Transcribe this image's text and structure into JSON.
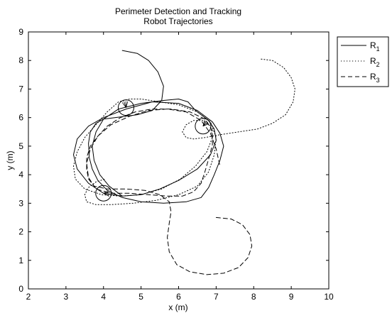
{
  "chart_data": {
    "type": "line",
    "title": "Perimeter Detection and Tracking",
    "subtitle": "Robot Trajectories",
    "xlabel": "x (m)",
    "ylabel": "y (m)",
    "xlim": [
      2,
      10
    ],
    "ylim": [
      0,
      9
    ],
    "xticks": [
      "2",
      "3",
      "4",
      "5",
      "6",
      "7",
      "8",
      "9",
      "10"
    ],
    "yticks": [
      "0",
      "1",
      "2",
      "3",
      "4",
      "5",
      "6",
      "7",
      "8",
      "9"
    ],
    "grid": false,
    "legend_position": "outside-top-right",
    "legend": [
      {
        "base": "R",
        "sub": "1"
      },
      {
        "base": "R",
        "sub": "2"
      },
      {
        "base": "R",
        "sub": "3"
      }
    ],
    "markers": [
      {
        "x": 4.6,
        "y": 6.35
      },
      {
        "x": 6.65,
        "y": 5.7
      },
      {
        "x": 4.0,
        "y": 3.35
      }
    ],
    "series": [
      {
        "style": "solid",
        "x": [
          4.5,
          4.9,
          5.2,
          5.45,
          5.6,
          5.55,
          5.3,
          4.9,
          4.6,
          4.3,
          4.0,
          3.8,
          3.65,
          3.6,
          3.62,
          3.7,
          3.85,
          4.1,
          4.5,
          5.0,
          5.6,
          6.2,
          6.6,
          6.8,
          6.95,
          7.1,
          7.2,
          7.1,
          6.9,
          6.5,
          6.0,
          5.3,
          4.6,
          4.0,
          3.6,
          3.3,
          3.2,
          3.3,
          3.6,
          4.0,
          4.5,
          5.0,
          5.5,
          6.0,
          6.5,
          6.85,
          7.0,
          6.95,
          6.8,
          6.6,
          6.45,
          6.35,
          6.25,
          6.0,
          5.6,
          5.0,
          4.4,
          4.0,
          3.8,
          3.7,
          3.75,
          3.9,
          4.15,
          4.5
        ],
        "y": [
          8.35,
          8.25,
          8.0,
          7.6,
          7.1,
          6.6,
          6.25,
          6.1,
          6.05,
          6.0,
          5.95,
          5.8,
          5.5,
          5.1,
          4.6,
          4.2,
          3.8,
          3.45,
          3.2,
          3.05,
          3.0,
          3.05,
          3.2,
          3.55,
          4.0,
          4.5,
          5.0,
          5.45,
          5.85,
          6.25,
          6.5,
          6.55,
          6.3,
          6.0,
          5.7,
          5.25,
          4.7,
          4.2,
          3.7,
          3.35,
          3.25,
          3.3,
          3.5,
          3.8,
          4.2,
          4.7,
          5.2,
          5.6,
          5.9,
          6.1,
          6.25,
          6.4,
          6.55,
          6.65,
          6.6,
          6.5,
          6.3,
          5.95,
          5.5,
          5.0,
          4.5,
          4.0,
          3.6,
          3.25
        ]
      },
      {
        "style": "dotted",
        "x": [
          8.2,
          8.5,
          8.8,
          9.0,
          9.1,
          9.05,
          8.85,
          8.5,
          8.1,
          7.6,
          7.1,
          6.7,
          6.4,
          6.2,
          6.1,
          6.2,
          6.4,
          6.65,
          6.85,
          6.9,
          6.75,
          6.45,
          6.05,
          5.55,
          5.0,
          4.45,
          3.95,
          3.5,
          3.25,
          3.2,
          3.3,
          3.5,
          3.8,
          4.1,
          4.4,
          4.7,
          5.0,
          5.5,
          6.0,
          6.5,
          6.85,
          7.0,
          6.95,
          6.8,
          6.5,
          6.0,
          5.4,
          4.8,
          4.2,
          3.8,
          3.55,
          3.5,
          3.6,
          3.8,
          4.05
        ],
        "y": [
          8.05,
          8.0,
          7.75,
          7.4,
          7.0,
          6.55,
          6.1,
          5.8,
          5.6,
          5.5,
          5.4,
          5.3,
          5.25,
          5.3,
          5.5,
          5.75,
          5.9,
          5.9,
          5.7,
          5.3,
          4.8,
          4.3,
          3.85,
          3.5,
          3.3,
          3.25,
          3.3,
          3.5,
          3.85,
          4.3,
          4.8,
          5.3,
          5.75,
          6.2,
          6.55,
          6.65,
          6.65,
          6.55,
          6.45,
          6.2,
          5.85,
          5.3,
          4.7,
          4.1,
          3.6,
          3.3,
          3.1,
          3.0,
          2.95,
          2.95,
          3.05,
          3.3,
          3.55,
          3.75,
          3.85
        ]
      },
      {
        "style": "dashed",
        "x": [
          7.0,
          7.4,
          7.7,
          7.9,
          7.95,
          7.85,
          7.6,
          7.2,
          6.75,
          6.3,
          5.95,
          5.75,
          5.7,
          5.75,
          5.8,
          5.75,
          5.5,
          5.1,
          4.6,
          4.1,
          3.75,
          3.6,
          3.55,
          3.55,
          3.65,
          3.85,
          4.1,
          4.45,
          4.85,
          5.3,
          5.8,
          6.3,
          6.7,
          6.9,
          6.9,
          6.8,
          6.7,
          6.6,
          6.4,
          6.1,
          5.7,
          5.2,
          4.7,
          4.2,
          3.8,
          3.6,
          3.55,
          3.65,
          3.85,
          4.2,
          4.7,
          5.2,
          5.7,
          6.2,
          6.6,
          6.85,
          7.0,
          7.1
        ],
        "y": [
          2.5,
          2.45,
          2.25,
          1.9,
          1.5,
          1.1,
          0.75,
          0.55,
          0.5,
          0.6,
          0.85,
          1.3,
          1.8,
          2.3,
          2.7,
          3.05,
          3.3,
          3.45,
          3.5,
          3.5,
          3.6,
          3.85,
          4.2,
          4.6,
          5.0,
          5.35,
          5.7,
          6.0,
          6.2,
          6.3,
          6.3,
          6.2,
          5.95,
          5.55,
          5.05,
          4.55,
          4.1,
          3.7,
          3.4,
          3.25,
          3.25,
          3.3,
          3.35,
          3.35,
          3.5,
          3.9,
          4.4,
          4.9,
          5.35,
          5.75,
          6.05,
          6.25,
          6.3,
          6.2,
          5.9,
          5.45,
          4.9,
          4.3
        ]
      }
    ]
  }
}
